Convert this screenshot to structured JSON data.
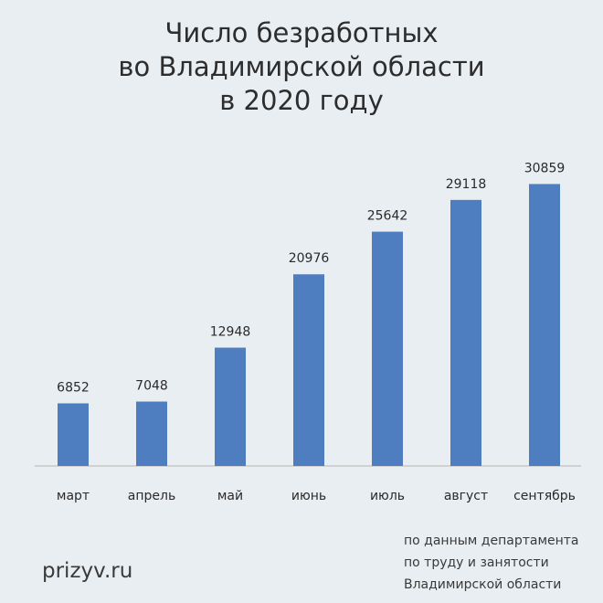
{
  "chart_data": {
    "type": "bar",
    "title": [
      "Число безработных",
      "во Владимирской области",
      "в 2020 году"
    ],
    "categories": [
      "март",
      "апрель",
      "май",
      "июнь",
      "июль",
      "август",
      "сентябрь"
    ],
    "values": [
      6852,
      7048,
      12948,
      20976,
      25642,
      29118,
      30859
    ],
    "value_labels": [
      "6852",
      "7048",
      "12948",
      "20976",
      "25642",
      "29118",
      "30859"
    ],
    "xlabel": "",
    "ylabel": "",
    "ylim": [
      0,
      32500
    ],
    "grid": false,
    "legend": "none",
    "bar_color": "#4f7ec0"
  },
  "footer": {
    "brand": "prizyv.ru",
    "source_lines": [
      "по данным департамента",
      "по труду и занятости",
      "Владимирской области"
    ]
  }
}
